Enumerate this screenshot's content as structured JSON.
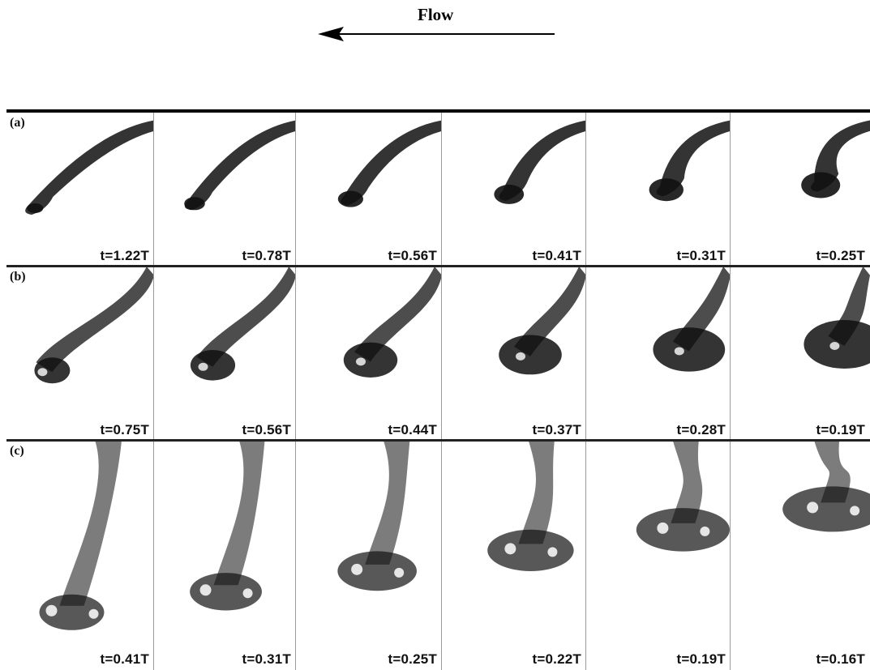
{
  "header": {
    "flow_label": "Flow",
    "arrow_direction": "left"
  },
  "rows": [
    {
      "label": "(a)",
      "times": [
        "t=1.22T",
        "t=0.78T",
        "t=0.56T",
        "t=0.41T",
        "t=0.31T",
        "t=0.25T"
      ]
    },
    {
      "label": "(b)",
      "times": [
        "t=0.75T",
        "t=0.56T",
        "t=0.44T",
        "t=0.37T",
        "t=0.28T",
        "t=0.19T"
      ]
    },
    {
      "label": "(c)",
      "times": [
        "t=0.41T",
        "t=0.31T",
        "t=0.25T",
        "t=0.22T",
        "t=0.19T",
        "t=0.16T"
      ]
    }
  ],
  "colors": {
    "ink": "#111111",
    "grid_line": "#9a9a9a",
    "background": "#ffffff"
  }
}
